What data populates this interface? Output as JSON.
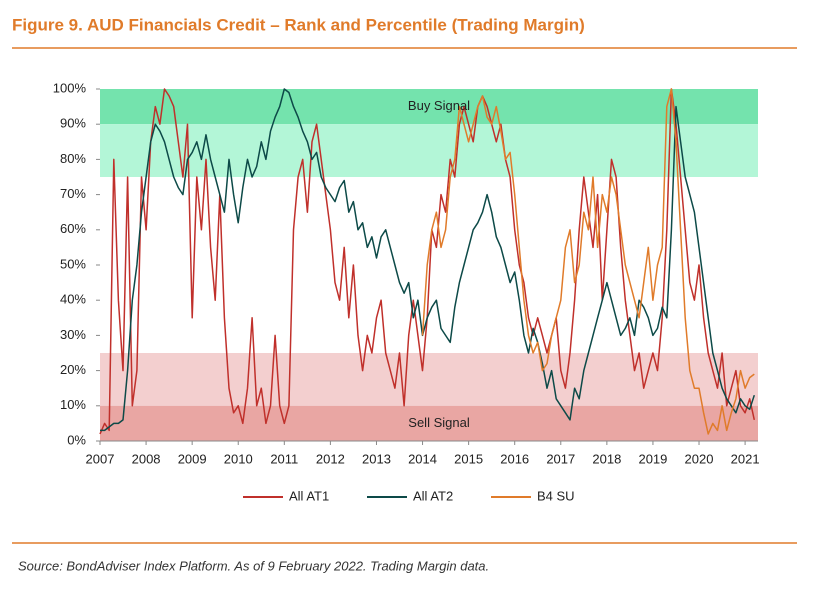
{
  "chart_data": {
    "type": "line",
    "title": "Figure 9. AUD Financials Credit – Rank and Percentile (Trading Margin)",
    "source": "Source: BondAdviser Index Platform. As of 9 February 2022. Trading Margin data.",
    "legend": "bottom",
    "xlim": [
      2007,
      2021.28
    ],
    "xticks": [
      2007,
      2008,
      2009,
      2010,
      2011,
      2012,
      2013,
      2014,
      2015,
      2016,
      2017,
      2018,
      2019,
      2020,
      2021
    ],
    "ylim": [
      0,
      100
    ],
    "yticks": [
      {
        "value": 0,
        "label": "0%"
      },
      {
        "value": 10,
        "label": "10%"
      },
      {
        "value": 20,
        "label": "20%"
      },
      {
        "value": 30,
        "label": "30%"
      },
      {
        "value": 40,
        "label": "40%"
      },
      {
        "value": 50,
        "label": "50%"
      },
      {
        "value": 60,
        "label": "60%"
      },
      {
        "value": 70,
        "label": "70%"
      },
      {
        "value": 80,
        "label": "80%"
      },
      {
        "value": 90,
        "label": "90%"
      },
      {
        "value": 100,
        "label": "100%"
      }
    ],
    "bands": [
      {
        "from": 90,
        "to": 100,
        "color": "#74e3ad",
        "label": "Buy Signal"
      },
      {
        "from": 75,
        "to": 90,
        "color": "#b3f6d7"
      },
      {
        "from": 10,
        "to": 25,
        "color": "#f3cfcf"
      },
      {
        "from": 0,
        "to": 10,
        "color": "#e9a6a3",
        "label": "Sell Signal"
      }
    ],
    "x": [
      2007.0,
      2007.1,
      2007.2,
      2007.3,
      2007.4,
      2007.5,
      2007.6,
      2007.7,
      2007.8,
      2007.9,
      2008.0,
      2008.1,
      2008.2,
      2008.3,
      2008.4,
      2008.5,
      2008.6,
      2008.7,
      2008.8,
      2008.9,
      2009.0,
      2009.1,
      2009.2,
      2009.3,
      2009.4,
      2009.5,
      2009.6,
      2009.7,
      2009.8,
      2009.9,
      2010.0,
      2010.1,
      2010.2,
      2010.3,
      2010.4,
      2010.5,
      2010.6,
      2010.7,
      2010.8,
      2010.9,
      2011.0,
      2011.1,
      2011.2,
      2011.3,
      2011.4,
      2011.5,
      2011.6,
      2011.7,
      2011.8,
      2011.9,
      2012.0,
      2012.1,
      2012.2,
      2012.3,
      2012.4,
      2012.5,
      2012.6,
      2012.7,
      2012.8,
      2012.9,
      2013.0,
      2013.1,
      2013.2,
      2013.3,
      2013.4,
      2013.5,
      2013.6,
      2013.7,
      2013.8,
      2013.9,
      2014.0,
      2014.1,
      2014.2,
      2014.3,
      2014.4,
      2014.5,
      2014.6,
      2014.7,
      2014.8,
      2014.9,
      2015.0,
      2015.1,
      2015.2,
      2015.3,
      2015.4,
      2015.5,
      2015.6,
      2015.7,
      2015.8,
      2015.9,
      2016.0,
      2016.1,
      2016.2,
      2016.3,
      2016.4,
      2016.5,
      2016.6,
      2016.7,
      2016.8,
      2016.9,
      2017.0,
      2017.1,
      2017.2,
      2017.3,
      2017.4,
      2017.5,
      2017.6,
      2017.7,
      2017.8,
      2017.9,
      2018.0,
      2018.1,
      2018.2,
      2018.3,
      2018.4,
      2018.5,
      2018.6,
      2018.7,
      2018.8,
      2018.9,
      2019.0,
      2019.1,
      2019.2,
      2019.3,
      2019.4,
      2019.5,
      2019.6,
      2019.7,
      2019.8,
      2019.9,
      2020.0,
      2020.1,
      2020.2,
      2020.3,
      2020.4,
      2020.5,
      2020.6,
      2020.7,
      2020.8,
      2020.9,
      2021.0,
      2021.1,
      2021.2
    ],
    "series": [
      {
        "name": "All AT1",
        "color": "#c0302b",
        "values": [
          2,
          5,
          3,
          80,
          40,
          20,
          75,
          10,
          20,
          75,
          60,
          85,
          95,
          90,
          100,
          98,
          95,
          85,
          75,
          90,
          35,
          75,
          60,
          80,
          55,
          40,
          70,
          35,
          15,
          8,
          10,
          5,
          15,
          35,
          10,
          15,
          5,
          10,
          30,
          10,
          5,
          10,
          60,
          75,
          80,
          65,
          85,
          90,
          80,
          70,
          60,
          45,
          40,
          55,
          35,
          50,
          30,
          20,
          30,
          25,
          35,
          40,
          25,
          20,
          15,
          25,
          10,
          30,
          40,
          30,
          20,
          35,
          60,
          55,
          70,
          65,
          80,
          75,
          90,
          95,
          90,
          85,
          95,
          98,
          95,
          90,
          85,
          90,
          80,
          75,
          60,
          50,
          45,
          35,
          30,
          35,
          30,
          25,
          30,
          35,
          20,
          15,
          25,
          40,
          60,
          75,
          65,
          55,
          70,
          40,
          60,
          80,
          75,
          55,
          40,
          30,
          20,
          25,
          15,
          20,
          25,
          20,
          35,
          60,
          100,
          90,
          75,
          60,
          45,
          40,
          50,
          35,
          25,
          20,
          15,
          25,
          10,
          15,
          20,
          10,
          8,
          12,
          6
        ]
      },
      {
        "name": "All AT2",
        "color": "#0d4a48",
        "values": [
          3,
          3,
          4,
          5,
          5,
          6,
          20,
          40,
          50,
          65,
          75,
          85,
          90,
          88,
          85,
          80,
          75,
          72,
          70,
          80,
          82,
          85,
          80,
          87,
          80,
          75,
          70,
          65,
          80,
          70,
          62,
          72,
          80,
          75,
          78,
          85,
          80,
          88,
          92,
          95,
          100,
          99,
          95,
          92,
          88,
          85,
          80,
          82,
          75,
          72,
          70,
          68,
          72,
          74,
          65,
          68,
          60,
          62,
          55,
          58,
          52,
          58,
          60,
          55,
          50,
          45,
          42,
          45,
          35,
          40,
          30,
          35,
          38,
          40,
          32,
          30,
          28,
          38,
          45,
          50,
          55,
          60,
          62,
          65,
          70,
          65,
          58,
          55,
          50,
          45,
          48,
          40,
          30,
          25,
          32,
          28,
          22,
          15,
          20,
          12,
          10,
          8,
          6,
          15,
          12,
          20,
          25,
          30,
          35,
          40,
          45,
          40,
          35,
          30,
          32,
          35,
          30,
          40,
          38,
          35,
          30,
          32,
          38,
          35,
          60,
          95,
          85,
          75,
          70,
          65,
          55,
          45,
          35,
          25,
          20,
          15,
          12,
          10,
          8,
          12,
          10,
          9,
          13
        ]
      },
      {
        "name": "B4 SU",
        "color": "#e07b2a",
        "values": [
          null,
          null,
          null,
          null,
          null,
          null,
          null,
          null,
          null,
          null,
          null,
          null,
          null,
          null,
          null,
          null,
          null,
          null,
          null,
          null,
          null,
          null,
          null,
          null,
          null,
          null,
          null,
          null,
          null,
          null,
          null,
          null,
          null,
          null,
          null,
          null,
          null,
          null,
          null,
          null,
          null,
          null,
          null,
          null,
          null,
          null,
          null,
          null,
          null,
          null,
          null,
          null,
          null,
          null,
          null,
          null,
          null,
          null,
          null,
          null,
          null,
          null,
          null,
          null,
          null,
          null,
          null,
          null,
          null,
          null,
          30,
          50,
          60,
          65,
          55,
          60,
          75,
          80,
          95,
          90,
          85,
          90,
          95,
          98,
          92,
          90,
          95,
          88,
          80,
          82,
          70,
          55,
          40,
          30,
          25,
          28,
          20,
          22,
          30,
          35,
          40,
          55,
          60,
          45,
          50,
          65,
          60,
          75,
          55,
          70,
          65,
          75,
          70,
          60,
          50,
          45,
          40,
          35,
          45,
          55,
          40,
          50,
          55,
          95,
          100,
          85,
          60,
          35,
          20,
          15,
          15,
          8,
          2,
          5,
          3,
          10,
          3,
          8,
          12,
          20,
          15,
          18,
          19
        ]
      }
    ]
  }
}
